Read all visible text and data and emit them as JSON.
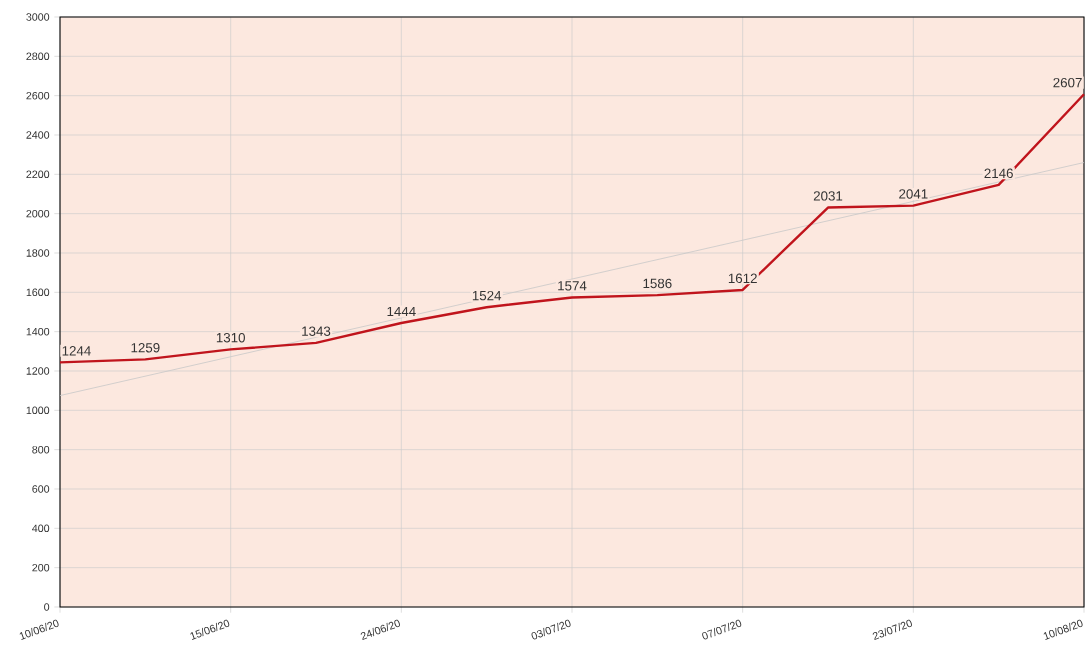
{
  "chart_data": {
    "type": "line",
    "categories": [
      "10/06/20",
      null,
      "15/06/20",
      null,
      "24/06/20",
      null,
      "03/07/20",
      null,
      "07/07/20",
      null,
      "23/07/20",
      null,
      "10/08/20"
    ],
    "series": [
      {
        "color": "#c0141c",
        "values": [
          1244,
          1259,
          1310,
          1343,
          1444,
          1524,
          1574,
          1586,
          1612,
          2031,
          2041,
          2146,
          2607
        ],
        "data_labels": true
      },
      {
        "type": "line",
        "color": "#c8c8c8",
        "values": [
          1075,
          null,
          null,
          null,
          null,
          null,
          null,
          null,
          null,
          null,
          null,
          null,
          2260
        ]
      }
    ],
    "ylim": [
      0,
      3000
    ],
    "yticks": [
      0,
      200,
      400,
      600,
      800,
      1000,
      1200,
      1400,
      1600,
      1800,
      2000,
      2200,
      2400,
      2600,
      2800,
      3000
    ],
    "grid": true,
    "marker": "none",
    "line_style": "solid"
  }
}
